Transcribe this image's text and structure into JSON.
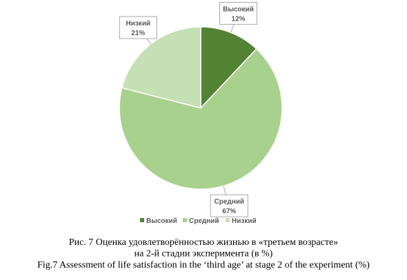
{
  "chart_data": {
    "type": "pie",
    "categories": [
      "Высокий",
      "Средний",
      "Низкий"
    ],
    "values": [
      12,
      67,
      21
    ],
    "value_labels": [
      "12%",
      "67%",
      "21%"
    ],
    "colors": [
      "#548235",
      "#a9d18e",
      "#c5e0b4"
    ],
    "legend": "bottom",
    "caption": [
      "Рис. 7 Оценка удовлетворённостью жизнью в «третьем возрасте»",
      "на 2-й стадии эксперимента (в %)",
      "Fig.7 Assessment of life satisfaction in the ‘third age’ at stage 2 of the experiment (%)"
    ]
  }
}
